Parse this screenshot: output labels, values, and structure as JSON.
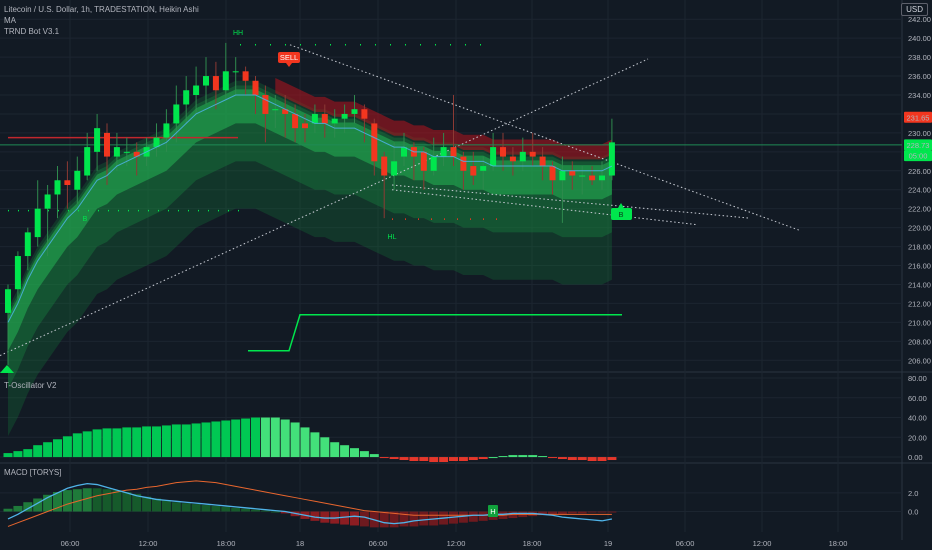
{
  "legend": {
    "symbol_line": "Litecoin / U.S. Dollar, 1h, TRADESTATION, Heikin Ashi",
    "ma_label": "MA",
    "bot_label": "TRND Bot V3.1",
    "osc_label": "T-Oscillator V2",
    "macd_label": "MACD [TORYS]"
  },
  "currency_button": "USD",
  "colors": {
    "background": "#121a24",
    "bull": "#00e64d",
    "bear": "#f2361f",
    "grid": "#1c2530",
    "macd_line": "#4fb3e8",
    "signal_line": "#e8662e",
    "current_price_line": "#1f8a55"
  },
  "chart_data": [
    {
      "type": "candlestick",
      "title": "Litecoin / U.S. Dollar, 1h, TRADESTATION, Heikin Ashi",
      "y_ticks": [
        "242.00",
        "240.00",
        "238.00",
        "236.00",
        "234.00",
        "232.00",
        "230.00",
        "228.00",
        "226.00",
        "224.00",
        "222.00",
        "220.00",
        "218.00",
        "216.00",
        "214.00",
        "212.00",
        "210.00",
        "208.00",
        "206.00"
      ],
      "ylim": [
        205.5,
        243.5
      ],
      "x_ticks": [
        "06:00",
        "12:00",
        "18:00",
        "18",
        "06:00",
        "12:00",
        "18:00",
        "19",
        "06:00",
        "12:00",
        "18:00"
      ],
      "candles": [
        [
          211,
          213.5,
          214,
          205.5
        ],
        [
          213.5,
          217,
          217.5,
          212.5
        ],
        [
          217,
          219.5,
          220,
          215.5
        ],
        [
          219,
          222,
          225,
          218
        ],
        [
          222,
          223.5,
          224.5,
          217
        ],
        [
          223.5,
          225,
          226.5,
          221
        ],
        [
          225,
          224.5,
          227,
          222
        ],
        [
          224,
          226,
          227.5,
          222.5
        ],
        [
          225.5,
          228.5,
          230,
          225
        ],
        [
          228,
          230.5,
          232,
          226
        ],
        [
          230,
          227.5,
          231,
          224.5
        ],
        [
          227.5,
          228.5,
          230,
          226
        ],
        [
          228,
          228,
          229.5,
          226.5
        ],
        [
          228,
          227.5,
          229,
          225.5
        ],
        [
          227.5,
          228.5,
          229.5,
          226.5
        ],
        [
          228.5,
          229.5,
          231,
          227.5
        ],
        [
          229.5,
          231,
          232.5,
          228
        ],
        [
          231,
          233,
          235,
          229
        ],
        [
          233,
          234.5,
          236,
          231
        ],
        [
          234,
          235,
          237,
          232
        ],
        [
          235,
          236,
          238,
          233
        ],
        [
          236,
          234.5,
          237.5,
          232.5
        ],
        [
          234.5,
          236.5,
          239.5,
          233.5
        ],
        [
          236.5,
          236.5,
          238,
          234
        ],
        [
          236.5,
          235.5,
          237,
          234
        ],
        [
          235.5,
          234,
          236,
          232
        ],
        [
          234,
          232,
          235,
          229
        ],
        [
          232.5,
          232.5,
          234,
          230.5
        ],
        [
          232.5,
          232,
          234,
          229.5
        ],
        [
          232,
          230.5,
          233,
          229
        ],
        [
          231,
          230.5,
          232,
          229
        ],
        [
          231,
          232,
          233,
          230
        ],
        [
          232,
          231,
          233,
          229.5
        ],
        [
          231,
          231.5,
          232.5,
          229.5
        ],
        [
          231.5,
          232,
          233,
          230
        ],
        [
          232,
          232.5,
          234,
          231
        ],
        [
          232.5,
          231.5,
          233,
          229
        ],
        [
          231,
          227,
          231.5,
          225.5
        ],
        [
          227.5,
          225.5,
          228,
          221
        ],
        [
          225.5,
          227,
          229,
          224
        ],
        [
          227.5,
          228.5,
          230,
          226.5
        ],
        [
          228.5,
          227.5,
          229,
          225
        ],
        [
          228,
          226,
          228.5,
          224
        ],
        [
          226,
          227.5,
          229.5,
          225.5
        ],
        [
          227.5,
          228.5,
          230,
          226.5
        ],
        [
          228.5,
          227.5,
          234,
          226.5
        ],
        [
          227.5,
          226,
          228,
          224
        ],
        [
          226.5,
          225.5,
          228,
          224.5
        ],
        [
          226,
          226.5,
          227.5,
          224
        ],
        [
          226.5,
          228.5,
          230,
          226
        ],
        [
          228.5,
          227.5,
          230,
          226
        ],
        [
          227.5,
          227,
          228.5,
          225.5
        ],
        [
          227,
          228,
          229.5,
          226
        ],
        [
          228,
          227.5,
          230,
          226.5
        ],
        [
          227.5,
          226.5,
          228.5,
          225
        ],
        [
          226.5,
          225,
          227,
          223.5
        ],
        [
          225,
          226,
          227.5,
          220.5
        ],
        [
          226,
          225.5,
          227,
          224
        ],
        [
          225.5,
          225.5,
          226.5,
          223.5
        ],
        [
          225.5,
          225,
          226.5,
          224.5
        ],
        [
          225,
          225.5,
          227,
          224
        ],
        [
          225.5,
          229,
          231.5,
          225
        ]
      ],
      "moving_average": [
        210,
        212,
        214.5,
        216.5,
        218,
        219.5,
        221,
        222,
        223.5,
        225,
        225.5,
        226.5,
        227,
        227.5,
        228,
        228.5,
        229,
        230,
        231,
        232,
        232.5,
        233,
        233.5,
        234,
        234,
        234,
        233.5,
        233,
        232.5,
        232,
        231.5,
        231,
        231,
        230.5,
        230.5,
        230.5,
        230,
        229.5,
        229,
        228.5,
        228.5,
        228,
        228,
        227.5,
        227.5,
        227.5,
        227,
        227,
        227,
        226.5,
        226.5,
        226.5,
        226.5,
        226.5,
        226.5,
        226.5,
        226,
        226,
        226,
        226,
        226,
        226.5
      ],
      "price_labels": [
        {
          "value": 231.65,
          "text": "231.65"
        },
        {
          "value": 228.73,
          "text": "228.73"
        },
        {
          "value": 227.6,
          "text": "05:00"
        }
      ],
      "annotations": [
        "HH",
        "SELL",
        "HL",
        "B",
        "B",
        "H"
      ],
      "grid": true
    },
    {
      "type": "bar",
      "title": "T-Oscillator V2",
      "y_ticks": [
        "80.00",
        "60.00",
        "40.00",
        "20.00",
        "0.00"
      ],
      "ylim": [
        -5,
        80
      ],
      "values": [
        4,
        6,
        8,
        12,
        15,
        18,
        21,
        24,
        26,
        28,
        29,
        29,
        30,
        30,
        31,
        31,
        32,
        33,
        33,
        34,
        35,
        36,
        37,
        38,
        39,
        40,
        40,
        40,
        38,
        35,
        30,
        25,
        20,
        15,
        12,
        9,
        6,
        3,
        -1,
        -2,
        -3,
        -4,
        -4,
        -5,
        -5,
        -4,
        -4,
        -3,
        -2,
        0,
        1,
        2,
        2,
        2,
        1,
        -1,
        -2,
        -3,
        -3,
        -4,
        -4,
        -3
      ]
    },
    {
      "type": "bar",
      "title": "MACD [TORYS]",
      "y_ticks": [
        "2.0",
        "0.0"
      ],
      "ylim": [
        -2.2,
        5
      ],
      "histogram": [
        0.3,
        0.6,
        1.0,
        1.4,
        1.8,
        2.1,
        2.3,
        2.4,
        2.5,
        2.5,
        2.4,
        2.3,
        2.1,
        1.9,
        1.6,
        1.4,
        1.2,
        1.0,
        0.9,
        0.8,
        0.7,
        0.6,
        0.5,
        0.4,
        0.3,
        0.2,
        0.1,
        0.0,
        -0.2,
        -0.5,
        -0.8,
        -1.0,
        -1.2,
        -1.3,
        -1.4,
        -1.5,
        -1.6,
        -1.7,
        -1.7,
        -1.7,
        -1.6,
        -1.6,
        -1.5,
        -1.5,
        -1.4,
        -1.3,
        -1.2,
        -1.1,
        -1.0,
        -0.9,
        -0.8,
        -0.7,
        -0.6,
        -0.5,
        -0.4,
        -0.3,
        -0.3,
        -0.2,
        -0.2,
        -0.1,
        -0.1,
        -0.1
      ],
      "macd": [
        -0.8,
        -0.3,
        0.3,
        0.9,
        1.5,
        2.0,
        2.5,
        2.8,
        3.0,
        2.9,
        2.6,
        2.3,
        2.0,
        1.7,
        1.5,
        1.3,
        1.2,
        1.1,
        1.0,
        0.9,
        0.8,
        0.7,
        0.6,
        0.5,
        0.4,
        0.3,
        0.2,
        0.1,
        0.0,
        -0.2,
        -0.4,
        -0.6,
        -0.7,
        -0.7,
        -0.6,
        -0.5,
        -0.6,
        -0.9,
        -1.2,
        -1.3,
        -1.2,
        -1.0,
        -0.9,
        -0.8,
        -0.7,
        -0.6,
        -0.5,
        -0.4,
        -0.4,
        -0.3,
        -0.3,
        -0.2,
        -0.2,
        -0.2,
        -0.3,
        -0.4,
        -0.6,
        -0.7,
        -0.8,
        -0.9,
        -1.0,
        -0.8
      ],
      "signal": [
        -1.6,
        -1.2,
        -0.8,
        -0.4,
        0.0,
        0.4,
        0.8,
        1.1,
        1.4,
        1.7,
        1.9,
        2.1,
        2.3,
        2.4,
        2.6,
        2.7,
        2.9,
        3.1,
        3.2,
        3.3,
        3.2,
        3.1,
        2.9,
        2.7,
        2.5,
        2.3,
        2.1,
        1.9,
        1.7,
        1.5,
        1.3,
        1.1,
        0.9,
        0.7,
        0.5,
        0.3,
        0.1,
        0.0,
        -0.1,
        -0.2,
        -0.3,
        -0.4,
        -0.4,
        -0.4,
        -0.4,
        -0.4,
        -0.4,
        -0.4,
        -0.4,
        -0.4,
        -0.4,
        -0.3,
        -0.3,
        -0.3,
        -0.3,
        -0.3,
        -0.3,
        -0.3,
        -0.3,
        -0.3,
        -0.3,
        -0.3
      ]
    }
  ]
}
